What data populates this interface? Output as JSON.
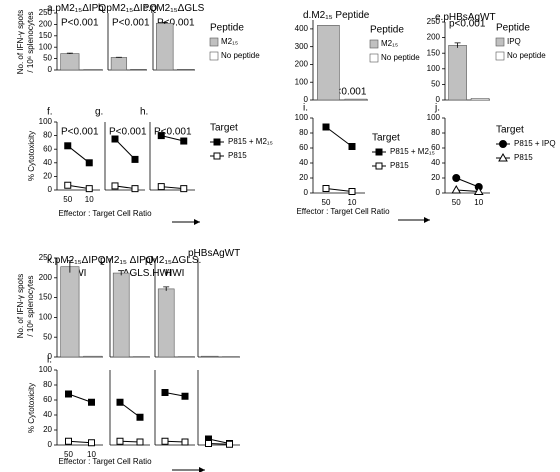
{
  "chart_data": [
    {
      "type": "bar",
      "label": "a.",
      "title": "pM2₁₅ΔIPQ",
      "annotation": "P<0.001",
      "ylabel": [
        "No. of IFN-γ spots",
        "/ 10⁶ splenocytes"
      ],
      "ylim": [
        0,
        250
      ],
      "yticks": [
        0,
        50,
        100,
        150,
        200,
        250
      ],
      "series": [
        {
          "color": "#c0c0c0",
          "values": [
            72
          ],
          "errors": [
            2
          ]
        },
        {
          "color": "#ffffff",
          "values": [
            2
          ]
        }
      ]
    },
    {
      "type": "bar",
      "label": "b.",
      "title": "pM2₁₅ΔIPQ",
      "annotation": "P<0.001",
      "ylim": [
        0,
        250
      ],
      "series": [
        {
          "color": "#c0c0c0",
          "values": [
            55
          ],
          "errors": [
            1
          ]
        },
        {
          "color": "#ffffff",
          "values": [
            3
          ]
        }
      ]
    },
    {
      "type": "bar",
      "label": "c.",
      "title": "pM2₁₅ΔGLS",
      "annotation": "P<0.001",
      "ylim": [
        0,
        250
      ],
      "legend_title": "Peptide",
      "series": [
        {
          "name": "M2₁₅",
          "color": "#c0c0c0",
          "values": [
            205
          ],
          "errors": [
            3
          ]
        },
        {
          "name": "No peptide",
          "color": "#ffffff",
          "values": [
            3
          ]
        }
      ]
    },
    {
      "type": "bar",
      "label": "d.",
      "title": "M2₁₅ Peptide",
      "annotation": "p<0.001",
      "ylim": [
        0,
        450
      ],
      "yticks": [
        0,
        100,
        200,
        300,
        400
      ],
      "legend_title": "Peptide",
      "series": [
        {
          "name": "M2₁₅",
          "color": "#c0c0c0",
          "values": [
            420
          ]
        },
        {
          "name": "No peptide",
          "color": "#ffffff",
          "values": [
            5
          ]
        }
      ]
    },
    {
      "type": "bar",
      "label": "e.",
      "title": "pHBsAgWT",
      "annotation": "p<0.001",
      "ylim": [
        0,
        250
      ],
      "yticks": [
        0,
        50,
        100,
        150,
        200,
        250
      ],
      "legend_title": "Peptide",
      "series": [
        {
          "name": "IPQ",
          "color": "#c0c0c0",
          "values": [
            175
          ],
          "errors": [
            8
          ]
        },
        {
          "name": "No peptide",
          "color": "#ffffff",
          "values": [
            5
          ]
        }
      ]
    },
    {
      "type": "line",
      "label": "f.",
      "annotation": "P<0.001",
      "ylabel": [
        "% Cytotoxicity"
      ],
      "xlabel": "Effector : Target Cell Ratio",
      "categories": [
        50,
        10
      ],
      "ylim": [
        0,
        100
      ],
      "yticks": [
        0,
        20,
        40,
        60,
        80,
        100
      ],
      "series": [
        {
          "color": "#000000",
          "marker": "square",
          "values": [
            65,
            40
          ]
        },
        {
          "color": "#ffffff",
          "marker": "square",
          "values": [
            7,
            2
          ]
        }
      ]
    },
    {
      "type": "line",
      "label": "g.",
      "annotation": "P<0.001",
      "categories": [
        null,
        null
      ],
      "ylim": [
        0,
        100
      ],
      "series": [
        {
          "color": "#000000",
          "marker": "square",
          "values": [
            75,
            45
          ]
        },
        {
          "color": "#ffffff",
          "marker": "square",
          "values": [
            6,
            2
          ]
        }
      ]
    },
    {
      "type": "line",
      "label": "h.",
      "annotation": "P<0.001",
      "categories": [
        null,
        null
      ],
      "ylim": [
        0,
        100
      ],
      "legend_title": "Target",
      "series": [
        {
          "name": "P815 + M2₁₅",
          "color": "#000000",
          "marker": "square",
          "values": [
            80,
            72
          ]
        },
        {
          "name": "P815",
          "color": "#ffffff",
          "marker": "square",
          "values": [
            5,
            2
          ]
        }
      ]
    },
    {
      "type": "line",
      "label": "i.",
      "xlabel": "Effector : Target Cell Ratio",
      "categories": [
        50,
        10
      ],
      "ylim": [
        0,
        100
      ],
      "yticks": [
        0,
        20,
        40,
        60,
        80,
        100
      ],
      "legend_title": "Target",
      "series": [
        {
          "name": "P815 + M2₁₅",
          "color": "#000000",
          "marker": "square",
          "values": [
            88,
            62
          ]
        },
        {
          "name": "P815",
          "color": "#ffffff",
          "marker": "square",
          "values": [
            6,
            2
          ]
        }
      ]
    },
    {
      "type": "line",
      "label": "j.",
      "categories": [
        50,
        10
      ],
      "ylim": [
        0,
        100
      ],
      "yticks": [
        0,
        20,
        40,
        60,
        80,
        100
      ],
      "legend_title": "Target",
      "series": [
        {
          "name": "P815 + IPQ",
          "color": "#000000",
          "marker": "circle",
          "values": [
            20,
            8
          ]
        },
        {
          "name": "P815",
          "color": "#ffffff",
          "marker": "triangle",
          "values": [
            4,
            2
          ]
        }
      ]
    },
    {
      "type": "bar",
      "label": "k.",
      "title": [
        "pM2₁₅ΔIPQ.",
        "HWI"
      ],
      "ylabel": [
        "No. of IFN-γ spots",
        "/ 10⁶ splenocytes"
      ],
      "ylim": [
        0,
        250
      ],
      "yticks": [
        0,
        50,
        100,
        150,
        200,
        250
      ],
      "series": [
        {
          "color": "#c0c0c0",
          "values": [
            228
          ],
          "errors": [
            15
          ]
        },
        {
          "color": "#ffffff",
          "values": [
            2
          ]
        }
      ]
    },
    {
      "type": "bar",
      "title": [
        "pM2₁₅ ΔIPQ",
        ".ΔGLS.HWI"
      ],
      "ylim": [
        0,
        250
      ],
      "series": [
        {
          "color": "#c0c0c0",
          "values": [
            212
          ],
          "errors": [
            6
          ]
        },
        {
          "color": "#ffffff",
          "values": [
            1
          ]
        }
      ]
    },
    {
      "type": "bar",
      "title": [
        "pM2₁₅ΔGLS.",
        "HWI"
      ],
      "ylim": [
        0,
        250
      ],
      "series": [
        {
          "color": "#c0c0c0",
          "values": [
            172
          ],
          "errors": [
            5
          ]
        },
        {
          "color": "#ffffff",
          "values": [
            1
          ]
        }
      ]
    },
    {
      "type": "bar",
      "title": "pHBsAgWT",
      "ylim": [
        0,
        250
      ],
      "series": [
        {
          "color": "#c0c0c0",
          "values": [
            2
          ]
        },
        {
          "color": "#ffffff",
          "values": [
            1
          ]
        }
      ]
    },
    {
      "type": "line",
      "label": "l.",
      "ylabel": [
        "% Cytotoxicity"
      ],
      "xlabel": "Effector : Target Cell Ratio",
      "categories": [
        50,
        10
      ],
      "ylim": [
        0,
        100
      ],
      "yticks": [
        0,
        20,
        40,
        60,
        80,
        100
      ],
      "series": [
        {
          "color": "#000000",
          "marker": "square",
          "values": [
            68,
            57
          ]
        },
        {
          "color": "#ffffff",
          "marker": "square",
          "values": [
            5,
            3
          ]
        }
      ]
    },
    {
      "type": "line",
      "categories": [
        null,
        null
      ],
      "ylim": [
        0,
        100
      ],
      "series": [
        {
          "color": "#000000",
          "marker": "square",
          "values": [
            57,
            37
          ]
        },
        {
          "color": "#ffffff",
          "marker": "square",
          "values": [
            5,
            4
          ]
        }
      ]
    },
    {
      "type": "line",
      "categories": [
        null,
        null
      ],
      "ylim": [
        0,
        100
      ],
      "series": [
        {
          "color": "#000000",
          "marker": "square",
          "values": [
            70,
            65
          ]
        },
        {
          "color": "#ffffff",
          "marker": "square",
          "values": [
            5,
            4
          ]
        }
      ]
    },
    {
      "type": "line",
      "categories": [
        null,
        null
      ],
      "ylim": [
        0,
        100
      ],
      "series": [
        {
          "color": "#000000",
          "marker": "square",
          "values": [
            8,
            2
          ]
        },
        {
          "color": "#ffffff",
          "marker": "square",
          "values": [
            2,
            1
          ]
        }
      ]
    }
  ]
}
